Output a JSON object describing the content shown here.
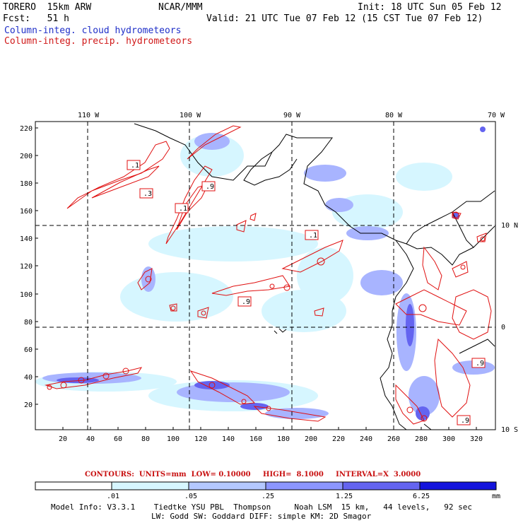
{
  "header": {
    "model_name": "TORERO  15km ARW",
    "org": "NCAR/MMM",
    "init": "Init: 18 UTC Sun 05 Feb 12",
    "fcst": "Fcst:   51 h",
    "valid": "Valid: 21 UTC Tue 07 Feb 12 (15 CST Tue 07 Feb 12)"
  },
  "legend": {
    "cloud": "Column-integ. cloud hydrometeors",
    "precip": "Column-integ. precip. hydrometeors"
  },
  "colors": {
    "cloud_label": "#1f2fc8",
    "precip_label": "#d01818",
    "contour": "#e01010",
    "shade_levels": [
      "#ffffff",
      "#d6f6ff",
      "#b4c8ff",
      "#8c96ff",
      "#6464f0",
      "#3c3ce6",
      "#1414dc"
    ]
  },
  "map": {
    "top_lon_labels": [
      "110 W",
      "100 W",
      "90 W",
      "80 W",
      "70 W"
    ],
    "right_lat_labels": [
      "10 N",
      "0",
      "10 S"
    ],
    "y_ticks": [
      "220",
      "200",
      "180",
      "160",
      "140",
      "120",
      "100",
      "80",
      "60",
      "40",
      "20"
    ],
    "x_ticks": [
      "20",
      "40",
      "60",
      "80",
      "100",
      "120",
      "140",
      "160",
      "180",
      "200",
      "220",
      "240",
      "260",
      "280",
      "300",
      "320"
    ],
    "contour_box_labels": [
      ".1",
      ".3",
      ".9",
      ".1",
      ".1",
      ".9",
      ".9",
      ".9"
    ]
  },
  "contour_info": "CONTOURS:  UNITS=mm  LOW= 0.10000     HIGH=  8.1000     INTERVAL=X  3.0000",
  "colorbar": {
    "labels": [
      ".01",
      ".05",
      ".25",
      "1.25",
      "6.25"
    ],
    "units": "mm"
  },
  "model_info": {
    "line1": "Model Info: V3.3.1    Tiedtke YSU PBL  Thompson     Noah LSM  15 km,   44 levels,   92 sec",
    "line2": "LW: Godd SW: Goddard DIFF: simple KM: 2D Smagor"
  }
}
